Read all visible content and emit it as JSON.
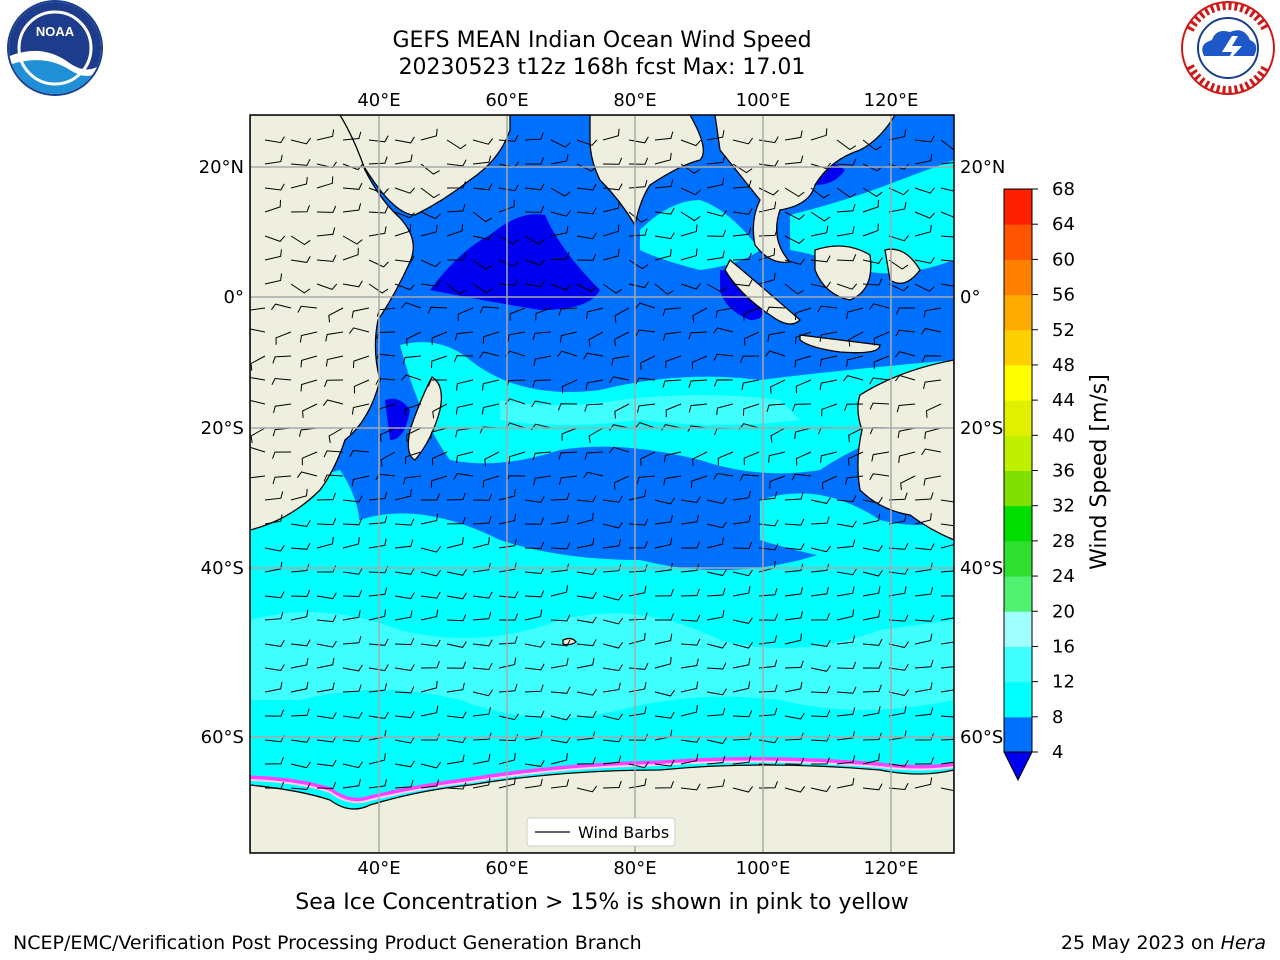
{
  "header": {
    "title_line1": "GEFS MEAN Indian Ocean Wind Speed",
    "title_line2": "20230523 t12z 168h fcst   Max: 17.01"
  },
  "logos": {
    "left": "noaa-logo",
    "right": "national-weather-service-logo"
  },
  "map": {
    "lon_ticks_top": [
      "40°E",
      "60°E",
      "80°E",
      "100°E",
      "120°E"
    ],
    "lon_ticks_bottom": [
      "40°E",
      "60°E",
      "80°E",
      "100°E",
      "120°E"
    ],
    "lat_ticks_left": [
      "20°N",
      "0°",
      "20°S",
      "40°S",
      "60°S"
    ],
    "lat_ticks_right": [
      "20°N",
      "0°",
      "20°S",
      "40°S",
      "60°S"
    ],
    "legend_label": "Wind Barbs",
    "colors": {
      "land": "#efefdf",
      "ocean_4_8": "#0070ff",
      "ocean_0_4": "#0000f0",
      "ocean_8_12": "#00ffff",
      "ocean_12_16": "#40ffff",
      "sea_ice": "#ff40ff"
    }
  },
  "colorbar": {
    "label": "Wind Speed [m/s]",
    "ticks": [
      "4",
      "8",
      "12",
      "16",
      "20",
      "24",
      "28",
      "32",
      "36",
      "40",
      "44",
      "48",
      "52",
      "56",
      "60",
      "64",
      "68"
    ],
    "colors": [
      "#0070ff",
      "#00ffff",
      "#40ffff",
      "#a0ffff",
      "#50f070",
      "#30e030",
      "#00dd00",
      "#80e000",
      "#c0f000",
      "#e0f000",
      "#ffff00",
      "#ffd000",
      "#ffaa00",
      "#ff8000",
      "#ff5500",
      "#ff2000"
    ],
    "extend_color": "#0000f0"
  },
  "note": "Sea Ice Concentration > 15% is shown in pink to yellow",
  "footer": {
    "left": "NCEP/EMC/Verification Post Processing Product Generation Branch",
    "right_date": "25 May 2023 on ",
    "right_host": "Hera"
  }
}
